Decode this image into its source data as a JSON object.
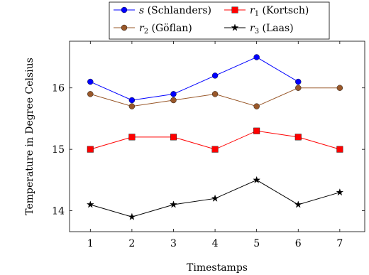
{
  "chart_data": {
    "type": "line",
    "title": "",
    "xlabel": "Timestamps",
    "ylabel": "Temperature in Degree Celsius",
    "x": [
      1,
      2,
      3,
      4,
      5,
      6,
      7
    ],
    "xlim": [
      0.5,
      7.6
    ],
    "ylim": [
      13.66,
      16.76
    ],
    "xticks": [
      "1",
      "2",
      "3",
      "4",
      "5",
      "6",
      "7"
    ],
    "yticks": [
      14,
      15,
      16
    ],
    "ytick_labels": [
      "14",
      "15",
      "16"
    ],
    "grid": false,
    "legend_position": "top-center",
    "series": [
      {
        "key": "s",
        "name_symbol": "s",
        "name_sub": "",
        "name_text": " (Schlanders)",
        "color": "#0000ff",
        "marker": "circle",
        "x": [
          1,
          2,
          3,
          4,
          5,
          6
        ],
        "values": [
          16.1,
          15.8,
          15.9,
          16.2,
          16.5,
          16.1
        ]
      },
      {
        "key": "r1",
        "name_symbol": "r",
        "name_sub": "1",
        "name_text": " (Kortsch)",
        "color": "#ff0000",
        "marker": "square",
        "x": [
          1,
          2,
          3,
          4,
          5,
          6,
          7
        ],
        "values": [
          15.0,
          15.2,
          15.2,
          15.0,
          15.3,
          15.2,
          15.0
        ]
      },
      {
        "key": "r2",
        "name_symbol": "r",
        "name_sub": "2",
        "name_text": " (Göflan)",
        "color": "#99582a",
        "marker": "circle",
        "x": [
          1,
          2,
          3,
          4,
          5,
          6,
          7
        ],
        "values": [
          15.9,
          15.7,
          15.8,
          15.9,
          15.7,
          16.0,
          16.0
        ]
      },
      {
        "key": "r3",
        "name_symbol": "r",
        "name_sub": "3",
        "name_text": " (Laas)",
        "color": "#000000",
        "marker": "star",
        "x": [
          1,
          2,
          3,
          4,
          5,
          6,
          7
        ],
        "values": [
          14.1,
          13.9,
          14.1,
          14.2,
          14.5,
          14.1,
          14.3
        ]
      }
    ]
  }
}
